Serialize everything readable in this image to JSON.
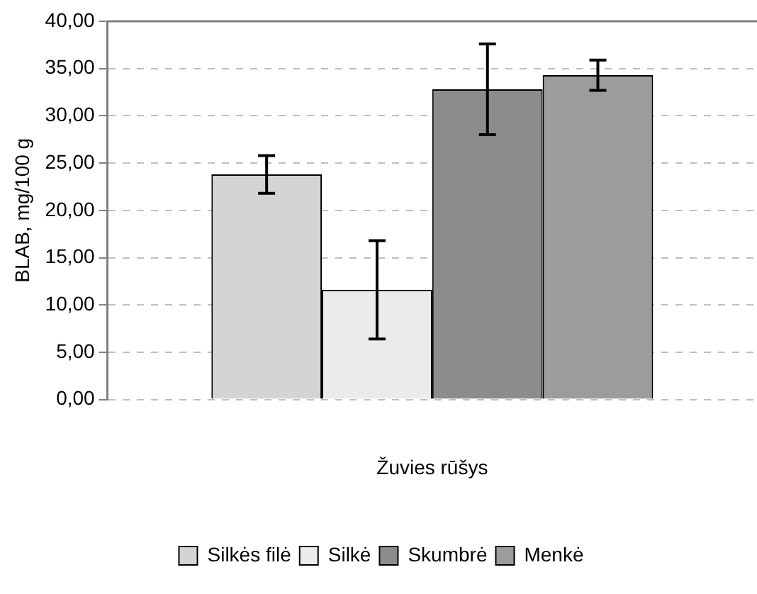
{
  "chart_data": {
    "type": "bar",
    "xlabel": "Žuvies rūšys",
    "ylabel": "BLAB, mg/100 g",
    "categories": [
      null
    ],
    "series": [
      {
        "name": "Silkės filė",
        "color": "#d4d4d4",
        "values": [
          23.8
        ],
        "errors": [
          2.0
        ]
      },
      {
        "name": "Silkė",
        "color": "#ebebeb",
        "values": [
          11.6
        ],
        "errors": [
          5.2
        ]
      },
      {
        "name": "Skumbrė",
        "color": "#8c8c8c",
        "values": [
          32.8
        ],
        "errors": [
          4.8
        ]
      },
      {
        "name": "Menkė",
        "color": "#9c9c9c",
        "values": [
          34.3
        ],
        "errors": [
          1.6
        ]
      }
    ],
    "ylim": [
      0,
      40
    ],
    "yticks": [
      {
        "value": 0,
        "label": "0,00"
      },
      {
        "value": 5,
        "label": "5,00"
      },
      {
        "value": 10,
        "label": "10,00"
      },
      {
        "value": 15,
        "label": "15,00"
      },
      {
        "value": 20,
        "label": "20,00"
      },
      {
        "value": 25,
        "label": "25,00"
      },
      {
        "value": 30,
        "label": "30,00"
      },
      {
        "value": 35,
        "label": "35,00"
      },
      {
        "value": 40,
        "label": "40,00"
      }
    ],
    "grid": "y",
    "legend": "bottom"
  }
}
